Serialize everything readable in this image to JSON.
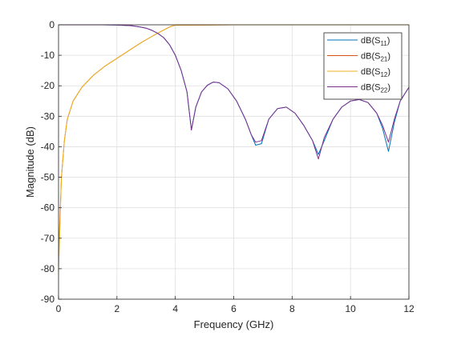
{
  "chart_data": {
    "type": "line",
    "xlabel": "Frequency (GHz)",
    "ylabel": "Magnitude (dB)",
    "xlim": [
      0,
      12
    ],
    "ylim": [
      -90,
      0
    ],
    "xticks": [
      0,
      2,
      4,
      6,
      8,
      10,
      12
    ],
    "yticks": [
      0,
      -10,
      -20,
      -30,
      -40,
      -50,
      -60,
      -70,
      -80,
      -90
    ],
    "grid": true,
    "legend_position": "top-right",
    "legend": [
      {
        "base": "dB(S",
        "sub": "11",
        "end": ")"
      },
      {
        "base": "dB(S",
        "sub": "21",
        "end": ")"
      },
      {
        "base": "dB(S",
        "sub": "12",
        "end": ")"
      },
      {
        "base": "dB(S",
        "sub": "22",
        "end": ")"
      }
    ],
    "series": [
      {
        "color": "#0072BD",
        "x": [
          0.02,
          0.5,
          1.0,
          1.5,
          2.0,
          2.5,
          2.8,
          3.0,
          3.2,
          3.4,
          3.6,
          3.8,
          4.0,
          4.2,
          4.4,
          4.55,
          4.7,
          4.9,
          5.1,
          5.3,
          5.5,
          5.8,
          6.1,
          6.4,
          6.6,
          6.75,
          6.95,
          7.2,
          7.5,
          7.8,
          8.1,
          8.4,
          8.7,
          8.9,
          9.1,
          9.4,
          9.7,
          10.0,
          10.3,
          10.6,
          10.9,
          11.1,
          11.3,
          11.5,
          11.7,
          12.0
        ],
        "y": [
          0,
          0,
          0,
          0,
          -0.05,
          -0.3,
          -0.7,
          -1.1,
          -1.8,
          -2.8,
          -4.2,
          -6.5,
          -10,
          -15,
          -22,
          -34.5,
          -27,
          -22,
          -19.8,
          -18.8,
          -19,
          -21,
          -25,
          -31,
          -36,
          -39.5,
          -39,
          -31,
          -27.5,
          -27,
          -29,
          -33,
          -38,
          -42.5,
          -38,
          -31,
          -27,
          -25,
          -24.5,
          -25.5,
          -29,
          -34,
          -41.5,
          -32,
          -25,
          -20.5
        ]
      },
      {
        "color": "#D95319",
        "x": [
          0,
          0.1,
          0.2,
          0.3,
          0.5,
          0.8,
          1.2,
          1.6,
          2.0,
          2.4,
          2.8,
          3.2,
          3.5,
          3.8,
          4.0,
          6.0,
          8.0,
          10.0,
          12.0
        ],
        "y": [
          -76,
          -50,
          -38,
          -31,
          -25,
          -20.5,
          -16.5,
          -13.5,
          -11,
          -8.5,
          -6,
          -3.8,
          -2.2,
          -0.7,
          -0.1,
          0,
          0,
          0,
          0
        ]
      },
      {
        "color": "#EDB120",
        "x": [
          0,
          0.1,
          0.2,
          0.3,
          0.5,
          0.8,
          1.2,
          1.6,
          2.0,
          2.4,
          2.8,
          3.2,
          3.5,
          3.8,
          4.0,
          6.0,
          8.0,
          10.0,
          12.0
        ],
        "y": [
          -81,
          -50,
          -38,
          -31,
          -25,
          -20.5,
          -16.5,
          -13.5,
          -11,
          -8.5,
          -6,
          -3.8,
          -2.2,
          -0.7,
          -0.1,
          0,
          0,
          0,
          0
        ]
      },
      {
        "color": "#7E2F8E",
        "x": [
          0.02,
          0.5,
          1.0,
          1.5,
          2.0,
          2.5,
          2.8,
          3.0,
          3.2,
          3.4,
          3.6,
          3.8,
          4.0,
          4.2,
          4.4,
          4.55,
          4.7,
          4.9,
          5.1,
          5.3,
          5.5,
          5.8,
          6.1,
          6.4,
          6.6,
          6.75,
          6.95,
          7.2,
          7.5,
          7.8,
          8.1,
          8.4,
          8.7,
          8.9,
          9.1,
          9.4,
          9.7,
          10.0,
          10.3,
          10.6,
          10.9,
          11.1,
          11.3,
          11.5,
          11.7,
          12.0
        ],
        "y": [
          0,
          0,
          0,
          0,
          -0.05,
          -0.3,
          -0.7,
          -1.1,
          -1.8,
          -2.8,
          -4.2,
          -6.5,
          -10,
          -15,
          -22,
          -34.5,
          -27,
          -22,
          -19.8,
          -18.8,
          -19,
          -21,
          -25,
          -31,
          -36,
          -38.5,
          -38,
          -31,
          -27.5,
          -27,
          -29,
          -33,
          -38,
          -44,
          -37,
          -31,
          -27,
          -25,
          -24.5,
          -25.5,
          -29,
          -33,
          -38.5,
          -31,
          -25,
          -20.5
        ]
      }
    ]
  }
}
